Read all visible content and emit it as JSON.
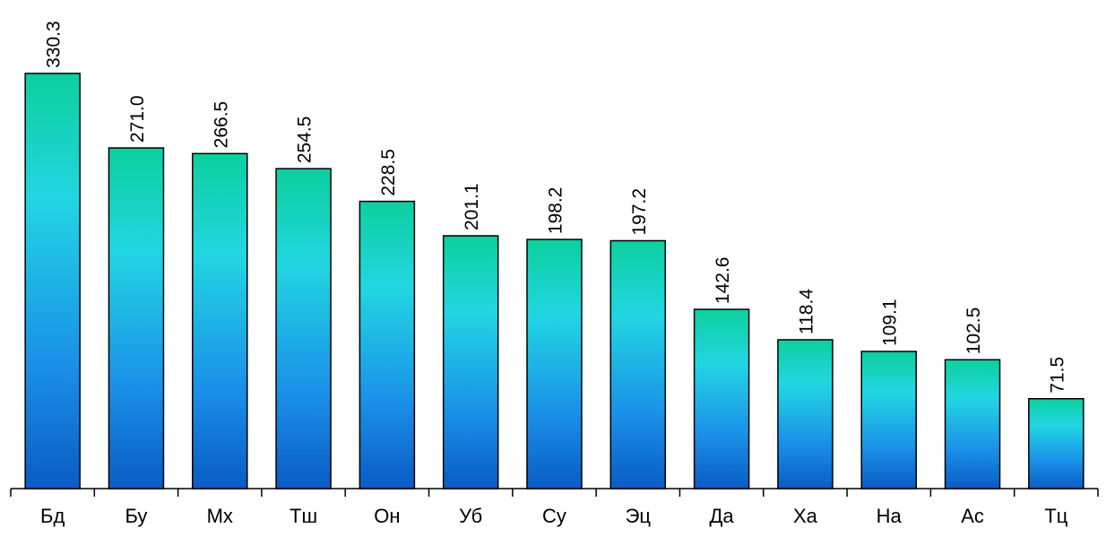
{
  "chart_data": {
    "type": "bar",
    "categories": [
      "Бд",
      "Бу",
      "Мх",
      "Тш",
      "Он",
      "Уб",
      "Су",
      "Эц",
      "Да",
      "Ха",
      "На",
      "Ас",
      "Тц"
    ],
    "values": [
      330.3,
      271.0,
      266.5,
      254.5,
      228.5,
      201.1,
      198.2,
      197.2,
      142.6,
      118.4,
      109.1,
      102.5,
      71.5
    ],
    "value_labels": [
      "330.3",
      "271.0",
      "266.5",
      "254.5",
      "228.5",
      "201.1",
      "198.2",
      "197.2",
      "142.6",
      "118.4",
      "109.1",
      "102.5",
      "71.5"
    ],
    "ylim": [
      0,
      388.7
    ]
  }
}
